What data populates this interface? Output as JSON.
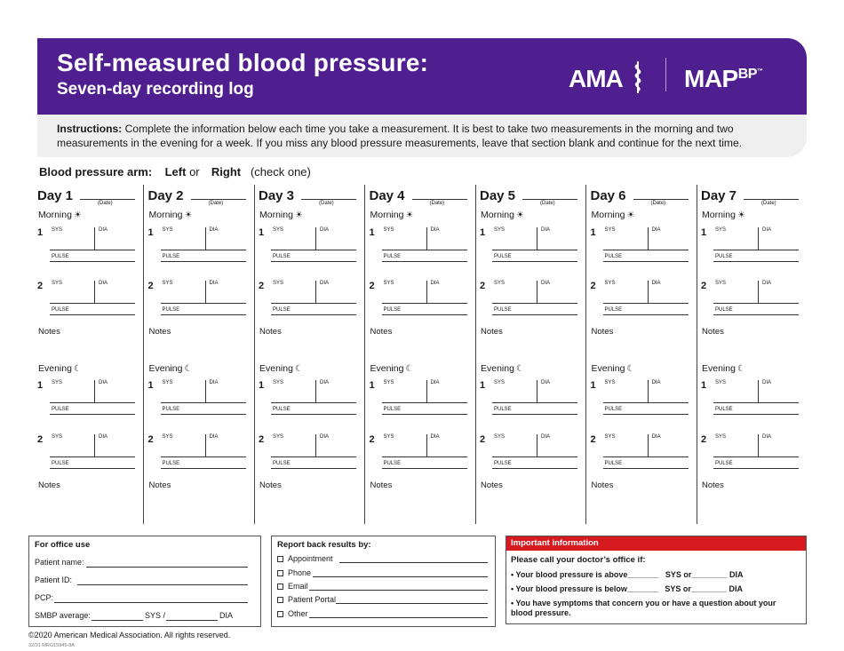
{
  "header": {
    "title": "Self-measured blood pressure:",
    "subtitle": "Seven-day recording log",
    "logo_ama": "AMA",
    "logo_map": "MAP",
    "logo_bp": "BP",
    "logo_tm": "™"
  },
  "instructions": {
    "label": "Instructions:",
    "text": "Complete the information below each time you take a measurement. It is best to take two measurements in the morning and two measurements in the evening for a week. If you miss any blood pressure measurements, leave that section blank and continue for the next time."
  },
  "arm": {
    "label": "Blood pressure arm:",
    "left": "Left",
    "or": "or",
    "right": "Right",
    "hint": "(check one)"
  },
  "labels": {
    "date": "(Date)",
    "morning": "Morning",
    "evening": "Evening",
    "sun_icon": "☀",
    "moon_icon": "☾",
    "reading_1": "1",
    "reading_2": "2",
    "sys": "SYS",
    "dia": "DIA",
    "pulse": "PULSE",
    "notes": "Notes"
  },
  "days": [
    "Day 1",
    "Day 2",
    "Day 3",
    "Day 4",
    "Day 5",
    "Day 6",
    "Day 7"
  ],
  "office": {
    "heading": "For office use",
    "patient_name": "Patient name:",
    "patient_id": "Patient ID:",
    "pcp": "PCP:",
    "smbp_average": "SMBP average:",
    "sys_sep": "SYS /",
    "dia": "DIA"
  },
  "report": {
    "heading": "Report back results by:",
    "options": [
      "Appointment",
      "Phone",
      "Email",
      "Patient Portal",
      "Other"
    ]
  },
  "important": {
    "heading": "Important information",
    "call": "Please call your doctor’s office if:",
    "above_1": "• Your blood pressure is above_______",
    "above_2": "SYS or________ DIA",
    "below_1": "• Your blood pressure is below_______",
    "below_2": "SYS or________ DIA",
    "symptoms": "• You have symptoms that concern you or have a question about your blood pressure."
  },
  "footer": {
    "copyright": "©2020 American Medical Association. All rights reserved.",
    "code": "32/31  MRG15945-8A"
  },
  "colors": {
    "header_purple": "#4f1f8f",
    "instructions_gray": "#efefef",
    "important_red": "#d71920"
  }
}
